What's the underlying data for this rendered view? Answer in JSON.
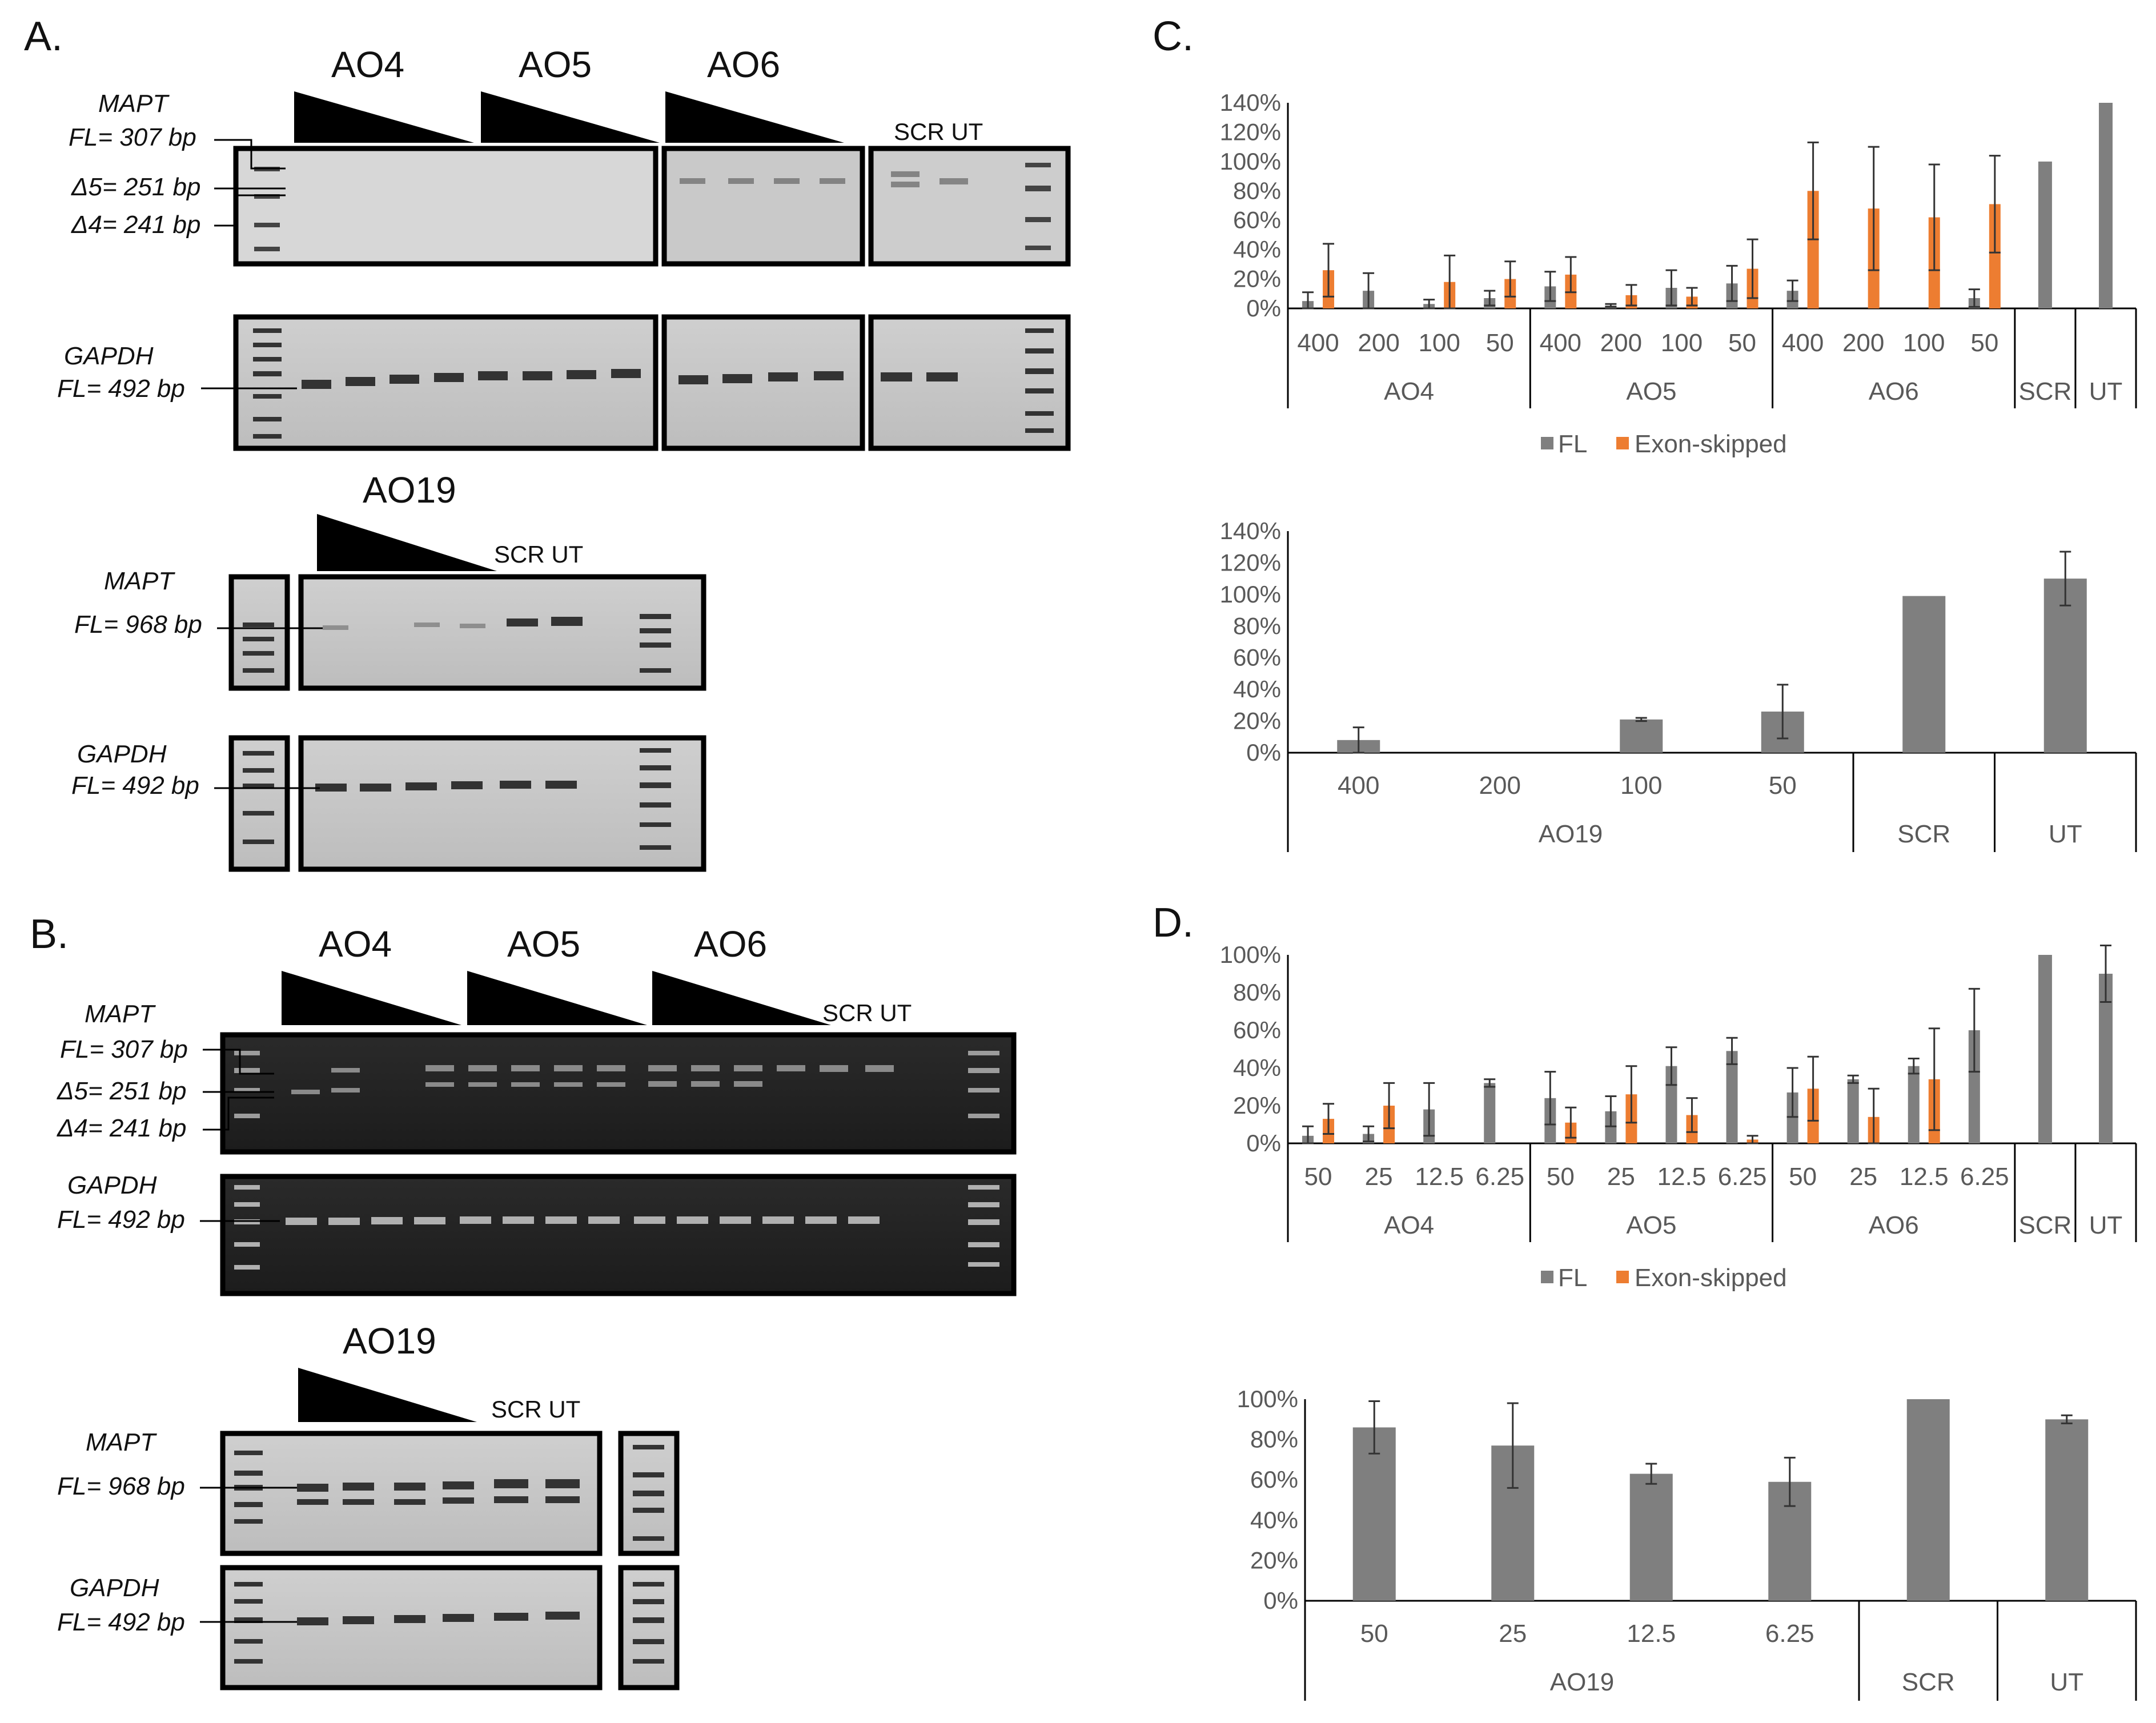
{
  "figure": {
    "panels": [
      "A.",
      "B.",
      "C.",
      "D."
    ],
    "ao_headers": [
      "AO4",
      "AO5",
      "AO6",
      "AO19"
    ],
    "scr_ut": "SCR UT",
    "gel_labels": {
      "mapt": "MAPT",
      "gapdh": "GAPDH",
      "fl307": "FL= 307 bp",
      "d5": "Δ5= 251 bp",
      "d4": "Δ4= 241 bp",
      "fl968": "FL= 968 bp",
      "fl492": "FL= 492 bp"
    },
    "legend": {
      "fl": "FL",
      "skip": "Exon-skipped"
    },
    "colors": {
      "fl": "#7f7f7f",
      "skip": "#ed7d31",
      "axis": "#000000",
      "text": "#595959"
    }
  },
  "chart_data": [
    {
      "type": "bar",
      "panel": "C",
      "title": "",
      "yticks": [
        "0%",
        "20%",
        "40%",
        "60%",
        "80%",
        "100%",
        "120%",
        "140%"
      ],
      "ylim": [
        0,
        140
      ],
      "categories": [
        "400",
        "200",
        "100",
        "50",
        "400",
        "200",
        "100",
        "50",
        "400",
        "200",
        "100",
        "50",
        "",
        ""
      ],
      "groups": [
        "AO4",
        "AO5",
        "AO6",
        "SCR",
        "UT"
      ],
      "series": [
        {
          "name": "FL",
          "values": [
            5,
            12,
            3,
            7,
            15,
            2,
            14,
            17,
            12,
            0,
            0,
            7,
            100,
            140
          ],
          "errors": [
            6,
            12,
            3,
            5,
            10,
            1,
            12,
            12,
            7,
            0,
            0,
            6,
            0,
            0
          ]
        },
        {
          "name": "Exon-skipped",
          "values": [
            26,
            0,
            18,
            20,
            23,
            9,
            8,
            27,
            80,
            68,
            62,
            71,
            0,
            0
          ],
          "errors": [
            18,
            0,
            18,
            12,
            12,
            7,
            6,
            20,
            33,
            42,
            36,
            33,
            0,
            0
          ]
        }
      ]
    },
    {
      "type": "bar",
      "panel": "C",
      "title": "",
      "yticks": [
        "0%",
        "20%",
        "40%",
        "60%",
        "80%",
        "100%",
        "120%",
        "140%"
      ],
      "ylim": [
        0,
        140
      ],
      "categories": [
        "400",
        "200",
        "100",
        "50",
        "",
        ""
      ],
      "groups": [
        "AO19",
        "SCR",
        "UT"
      ],
      "series": [
        {
          "name": "FL",
          "values": [
            8,
            0,
            21,
            26,
            99,
            110
          ],
          "errors": [
            8,
            0,
            1,
            17,
            0,
            17
          ]
        }
      ]
    },
    {
      "type": "bar",
      "panel": "D",
      "title": "",
      "yticks": [
        "0%",
        "20%",
        "40%",
        "60%",
        "80%",
        "100%"
      ],
      "ylim": [
        0,
        100
      ],
      "categories": [
        "50",
        "25",
        "12.5",
        "6.25",
        "50",
        "25",
        "12.5",
        "6.25",
        "50",
        "25",
        "12.5",
        "6.25",
        "",
        ""
      ],
      "groups": [
        "AO4",
        "AO5",
        "AO6",
        "SCR",
        "UT"
      ],
      "series": [
        {
          "name": "FL",
          "values": [
            4,
            5,
            18,
            32,
            24,
            17,
            41,
            49,
            27,
            34,
            41,
            60,
            100,
            90
          ],
          "errors": [
            5,
            4,
            14,
            2,
            14,
            8,
            10,
            7,
            13,
            2,
            4,
            22,
            0,
            15
          ]
        },
        {
          "name": "Exon-skipped",
          "values": [
            13,
            20,
            0,
            0,
            11,
            26,
            15,
            2,
            29,
            14,
            34,
            0,
            0,
            0
          ],
          "errors": [
            8,
            12,
            0,
            0,
            8,
            15,
            9,
            2,
            17,
            15,
            27,
            0,
            0,
            0
          ]
        }
      ]
    },
    {
      "type": "bar",
      "panel": "D",
      "title": "",
      "yticks": [
        "0%",
        "20%",
        "40%",
        "60%",
        "80%",
        "100%"
      ],
      "ylim": [
        0,
        100
      ],
      "categories": [
        "50",
        "25",
        "12.5",
        "6.25",
        "",
        ""
      ],
      "groups": [
        "AO19",
        "SCR",
        "UT"
      ],
      "series": [
        {
          "name": "FL",
          "values": [
            86,
            77,
            63,
            59,
            100,
            90
          ],
          "errors": [
            13,
            21,
            5,
            12,
            0,
            2
          ]
        }
      ]
    }
  ]
}
